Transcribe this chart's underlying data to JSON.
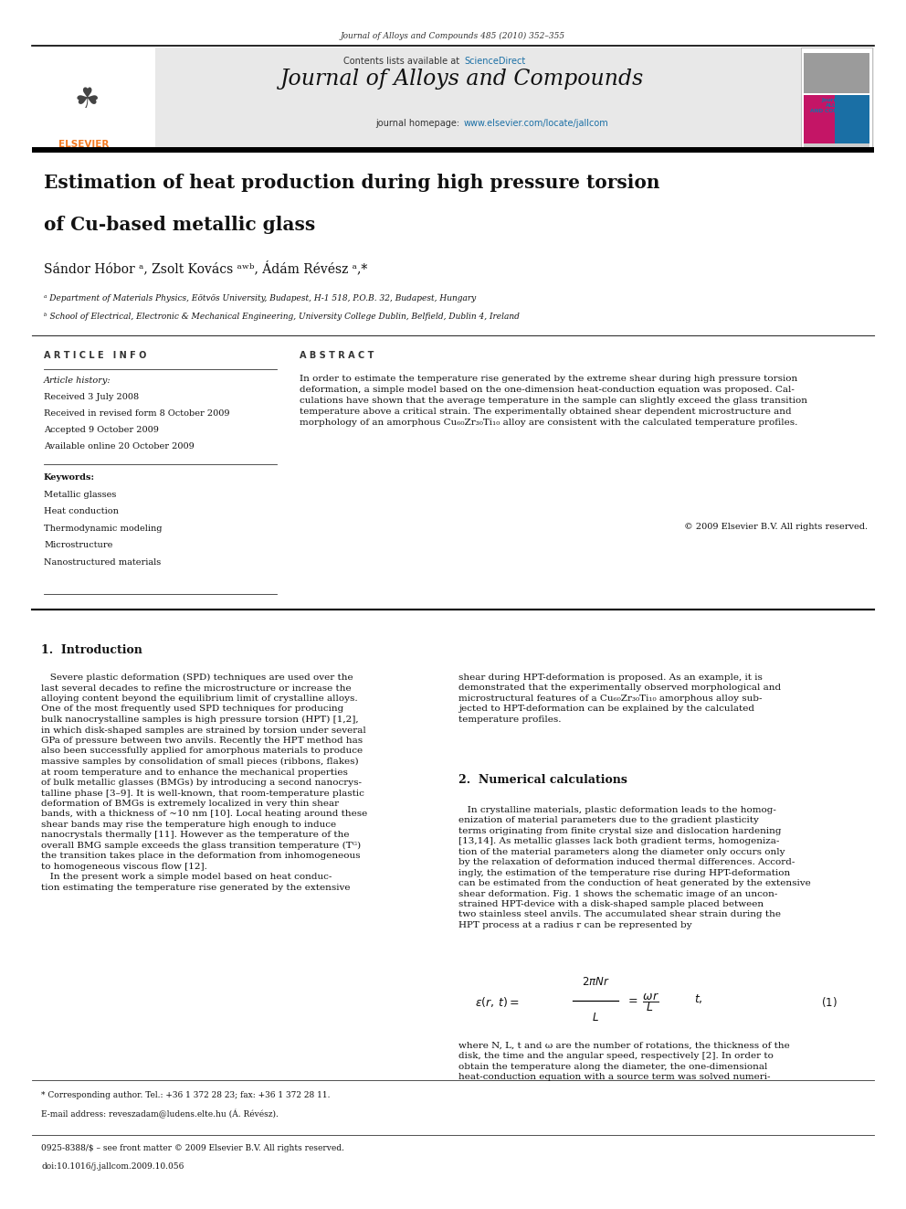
{
  "page_width": 9.92,
  "page_height": 13.23,
  "bg_color": "#ffffff",
  "top_citation": "Journal of Alloys and Compounds 485 (2010) 352–355",
  "header_bg": "#e8e8e8",
  "contents_text": "Contents lists available at",
  "sciencedirect_text": "ScienceDirect",
  "sciencedirect_color": "#1a6fa5",
  "journal_name": "Journal of Alloys and Compounds",
  "journal_homepage": "journal homepage: www.elsevier.com/locate/jallcom",
  "homepage_color": "#1a6fa5",
  "title_line1": "Estimation of heat production during high pressure torsion",
  "title_line2": "of Cu-based metallic glass",
  "authors": "Sándor Hóbor ᵃ, Zsolt Kovács ᵃʷᵇ, Ádám Révész ᵃ,*",
  "affil_a": "ᵃ Department of Materials Physics, Eötvös University, Budapest, H-1 518, P.O.B. 32, Budapest, Hungary",
  "affil_b": "ᵇ School of Electrical, Electronic & Mechanical Engineering, University College Dublin, Belfield, Dublin 4, Ireland",
  "section_article_info": "ARTICLE INFO",
  "article_history_label": "Article history:",
  "received": "Received 3 July 2008",
  "received_revised": "Received in revised form 8 October 2009",
  "accepted": "Accepted 9 October 2009",
  "available": "Available online 20 October 2009",
  "keywords_label": "Keywords:",
  "keywords": [
    "Metallic glasses",
    "Heat conduction",
    "Thermodynamic modeling",
    "Microstructure",
    "Nanostructured materials"
  ],
  "section_abstract": "ABSTRACT",
  "abstract_text": "In order to estimate the temperature rise generated by the extreme shear during high pressure torsion deformation, a simple model based on the one-dimension heat-conduction equation was proposed. Calculations have shown that the average temperature in the sample can slightly exceed the glass transition temperature above a critical strain. The experimentally obtained shear dependent microstructure and morphology of an amorphous Cu₆₀Zr₃₀Ti₁₀ alloy are consistent with the calculated temperature profiles.",
  "copyright": "© 2009 Elsevier B.V. All rights reserved.",
  "section1_title": "1.  Introduction",
  "section2_title": "2.  Numerical calculations",
  "footer_star": "* Corresponding author. Tel.: +36 1 372 28 23; fax: +36 1 372 28 11.",
  "footer_email": "E-mail address: reveszadam@ludens.elte.hu (Á. Révész).",
  "footer_issn": "0925-8388/$ – see front matter © 2009 Elsevier B.V. All rights reserved.",
  "footer_doi": "doi:10.1016/j.jallcom.2009.10.056",
  "elsevier_orange": "#f47920",
  "logo_box_colors": [
    "#8b8b8b",
    "#8b8b8b",
    "#c41566",
    "#1a6fa5",
    "#d0d0d0"
  ]
}
